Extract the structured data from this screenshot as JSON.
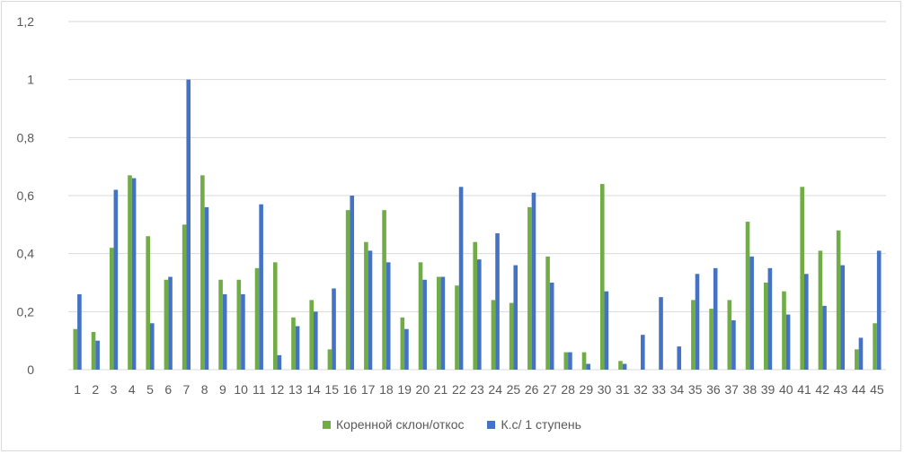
{
  "chart_data": {
    "type": "bar",
    "categories": [
      "1",
      "2",
      "3",
      "4",
      "5",
      "6",
      "7",
      "8",
      "9",
      "10",
      "11",
      "12",
      "13",
      "14",
      "15",
      "16",
      "17",
      "18",
      "19",
      "20",
      "21",
      "22",
      "23",
      "24",
      "25",
      "26",
      "27",
      "28",
      "29",
      "30",
      "31",
      "32",
      "33",
      "34",
      "35",
      "36",
      "37",
      "38",
      "39",
      "40",
      "41",
      "42",
      "43",
      "44",
      "45"
    ],
    "series": [
      {
        "name": "Коренной склон/откос",
        "color": "#70ad47",
        "values": [
          0.14,
          0.13,
          0.42,
          0.67,
          0.46,
          0.31,
          0.5,
          0.67,
          0.31,
          0.31,
          0.35,
          0.37,
          0.18,
          0.24,
          0.07,
          0.55,
          0.44,
          0.55,
          0.18,
          0.37,
          0.32,
          0.29,
          0.44,
          0.24,
          0.23,
          0.56,
          0.39,
          0.06,
          0.06,
          0.64,
          0.03,
          0,
          0,
          0,
          0.24,
          0.21,
          0.24,
          0.51,
          0.3,
          0.27,
          0.63,
          0.41,
          0.48,
          0.07,
          0.16
        ]
      },
      {
        "name": "К.с/ 1 ступень",
        "color": "#4472c4",
        "values": [
          0.26,
          0.1,
          0.62,
          0.66,
          0.16,
          0.32,
          1.0,
          0.56,
          0.26,
          0.26,
          0.57,
          0.05,
          0.15,
          0.2,
          0.28,
          0.6,
          0.41,
          0.37,
          0.14,
          0.31,
          0.32,
          0.63,
          0.38,
          0.47,
          0.36,
          0.61,
          0.3,
          0.06,
          0.02,
          0.27,
          0.02,
          0.12,
          0.25,
          0.08,
          0.33,
          0.35,
          0.17,
          0.39,
          0.35,
          0.19,
          0.33,
          0.22,
          0.36,
          0.11,
          0.41
        ]
      }
    ],
    "yticks": [
      "0",
      "0,2",
      "0,4",
      "0,6",
      "0,8",
      "1",
      "1,2"
    ],
    "ylim": [
      0,
      1.2
    ],
    "grid": true,
    "legend_position": "bottom",
    "title": "",
    "xlabel": "",
    "ylabel": ""
  }
}
